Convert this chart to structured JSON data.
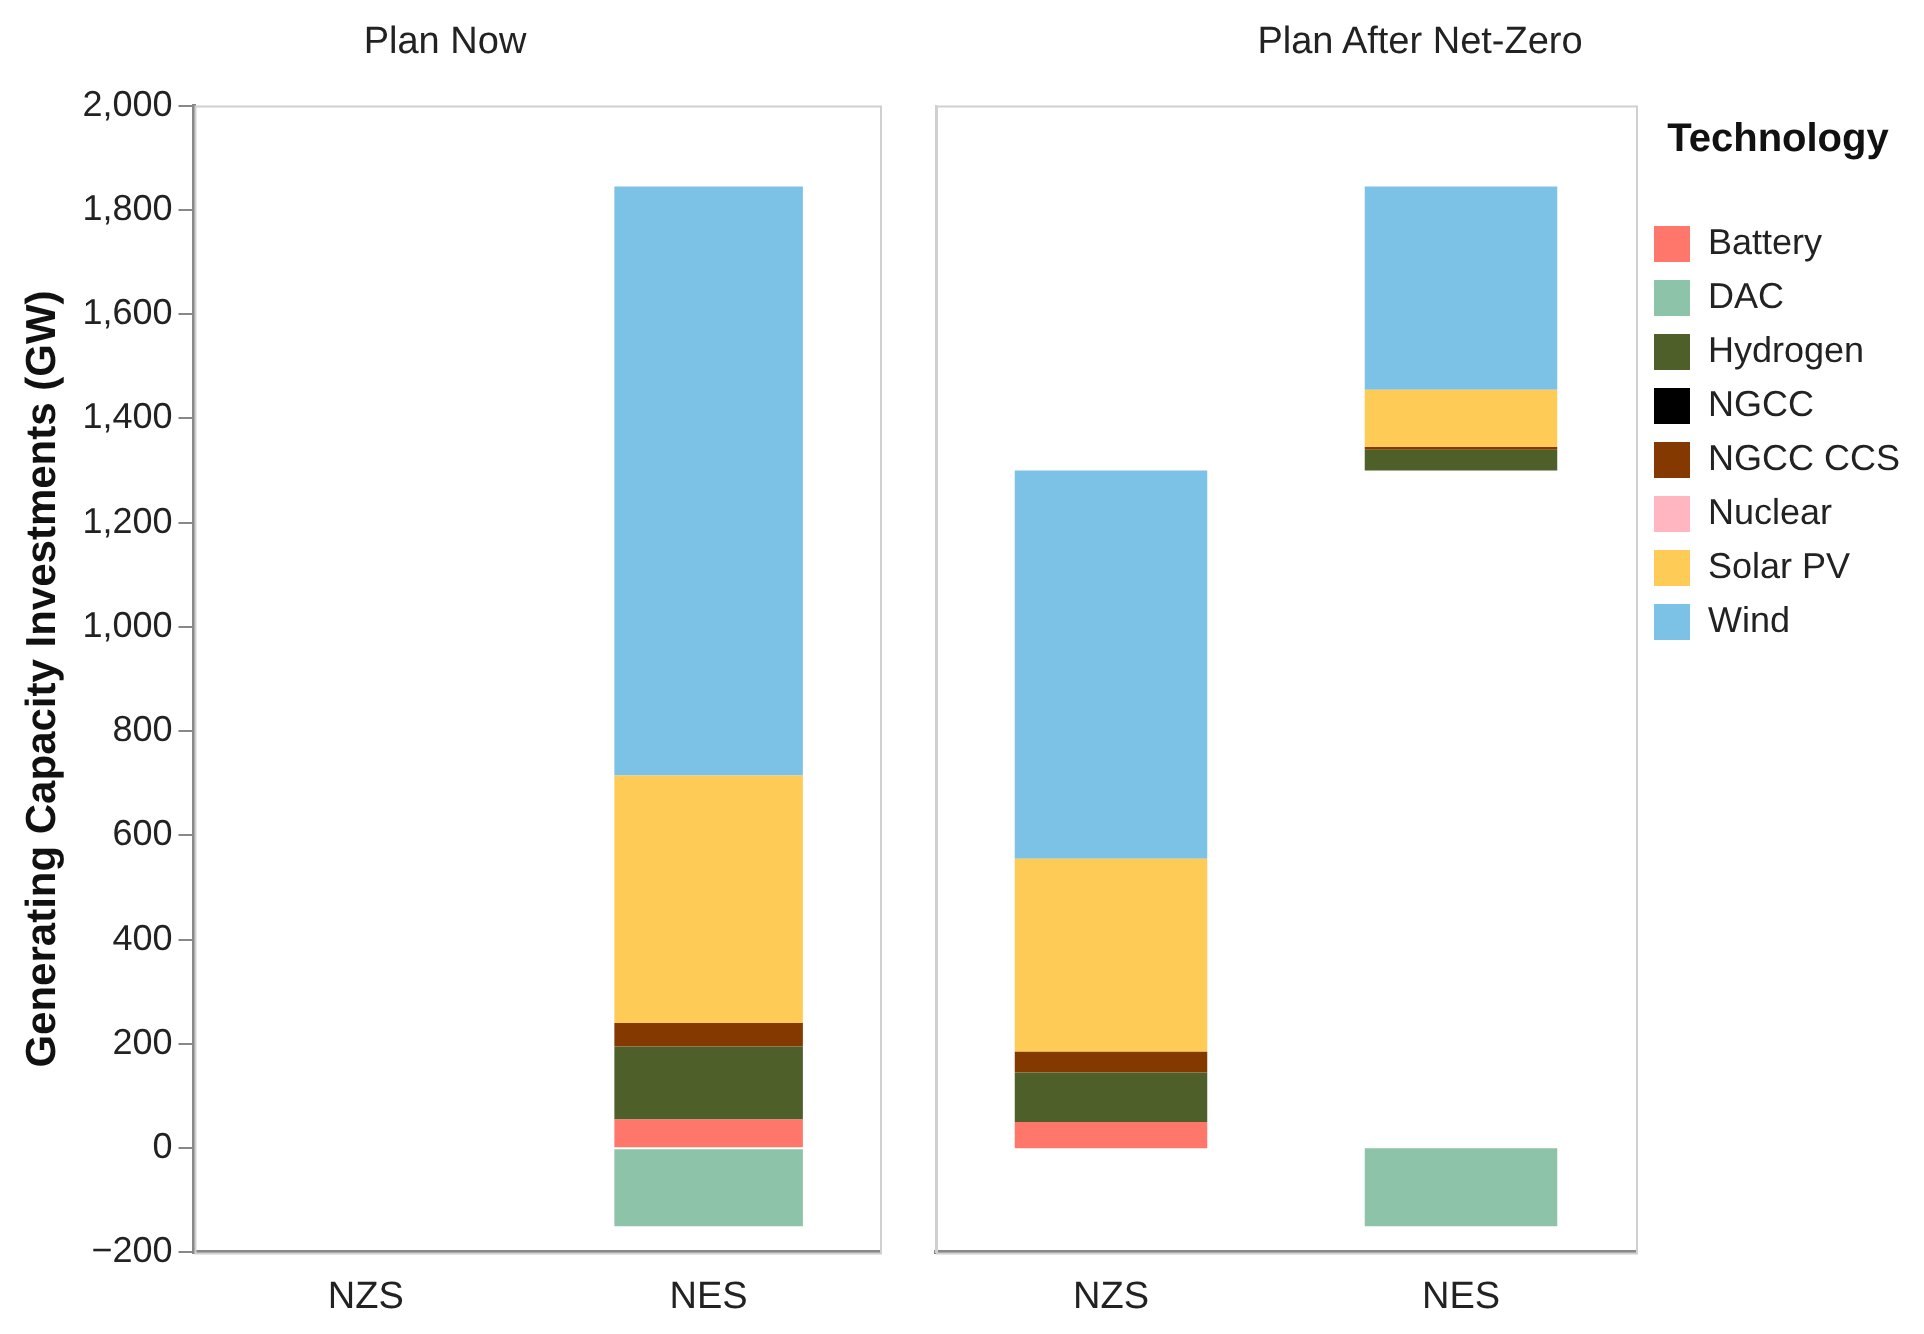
{
  "chart_data": [
    {
      "type": "bar",
      "title": "Plan Now",
      "ylabel": "Generating Capacity Investments (GW)",
      "categories": [
        "NZS",
        "NES"
      ],
      "stacked": true,
      "ylim": [
        -200,
        2000
      ],
      "yticks": [
        {
          "value": -200,
          "label": "−200"
        },
        0,
        200,
        400,
        600,
        800,
        {
          "value": 1000,
          "label": "1,000"
        },
        {
          "value": 1200,
          "label": "1,200"
        },
        {
          "value": 1400,
          "label": "1,400"
        },
        {
          "value": 1600,
          "label": "1,600"
        },
        {
          "value": 1800,
          "label": "1,800"
        },
        {
          "value": 2000,
          "label": "2,000"
        }
      ],
      "grid": false,
      "legend": false,
      "series": [
        {
          "color": "#ff766a",
          "values": [
            null,
            55
          ]
        },
        {
          "color": "#8cc3a9",
          "values": [
            null,
            -150
          ]
        },
        {
          "color": "#4f5f2a",
          "values": [
            null,
            140
          ]
        },
        {
          "color": "#000000",
          "values": [
            null,
            null
          ]
        },
        {
          "color": "#833900",
          "values": [
            null,
            45
          ]
        },
        {
          "color": "#ffb6c1",
          "values": [
            null,
            null
          ]
        },
        {
          "color": "#fecb56",
          "values": [
            null,
            475
          ]
        },
        {
          "color": "#7bc2e6",
          "values": [
            null,
            1130
          ]
        }
      ]
    },
    {
      "type": "bar",
      "title": "Plan After Net-Zero",
      "categories": [
        "NZS",
        "NES"
      ],
      "ylim": [
        -200,
        2000
      ],
      "tick_labels": "x",
      "grid": false,
      "legend": "right",
      "legend_title": "Technology",
      "series": [
        {
          "name": "Battery",
          "color": "#ff766a",
          "base": [
            0,
            null
          ],
          "values": [
            50,
            null
          ]
        },
        {
          "name": "DAC",
          "color": "#8cc3a9",
          "base": [
            null,
            0
          ],
          "values": [
            null,
            -150
          ]
        },
        {
          "name": "Hydrogen",
          "color": "#4f5f2a",
          "base": [
            50,
            1300
          ],
          "values": [
            95,
            40
          ]
        },
        {
          "name": "NGCC",
          "color": "#000000",
          "base": [
            null,
            null
          ],
          "values": [
            null,
            null
          ]
        },
        {
          "name": "NGCC CCS",
          "color": "#833900",
          "base": [
            145,
            1340
          ],
          "values": [
            40,
            5
          ]
        },
        {
          "name": "Nuclear",
          "color": "#ffb6c1",
          "base": [
            null,
            null
          ],
          "values": [
            null,
            null
          ]
        },
        {
          "name": "Solar PV",
          "color": "#fecb56",
          "base": [
            185,
            1345
          ],
          "values": [
            370,
            110
          ]
        },
        {
          "name": "Wind",
          "color": "#7bc2e6",
          "base": [
            555,
            1455
          ],
          "values": [
            745,
            390
          ]
        }
      ]
    }
  ]
}
